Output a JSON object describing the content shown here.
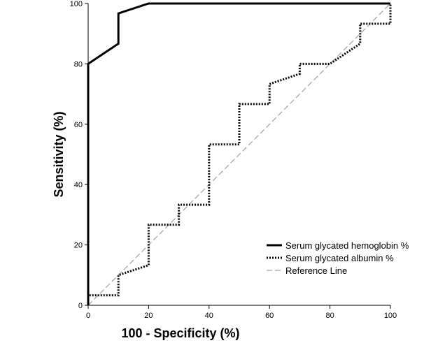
{
  "chart_data": {
    "type": "line",
    "xlabel": "100 - Specificity (%)",
    "ylabel": "Sensitivity (%)",
    "xlim": [
      0,
      100
    ],
    "ylim": [
      0,
      100
    ],
    "x_ticks": [
      "0",
      "20",
      "40",
      "60",
      "80",
      "100"
    ],
    "y_ticks": [
      "0",
      "20",
      "40",
      "60",
      "80",
      "100"
    ],
    "legend_position": "bottom-right",
    "series": [
      {
        "name": "Serum glycated hemoglobin %",
        "style": "solid",
        "color": "#000000",
        "x": [
          0,
          0,
          10,
          10,
          20,
          100
        ],
        "y": [
          0,
          80,
          86.7,
          96.7,
          100,
          100
        ]
      },
      {
        "name": "Serum glycated albumin %",
        "style": "dotted",
        "color": "#000000",
        "x": [
          0,
          0,
          10,
          10,
          20,
          20,
          30,
          30,
          40,
          40,
          50,
          50,
          60,
          60,
          70,
          70,
          80,
          90,
          90,
          100,
          100
        ],
        "y": [
          0,
          3.3,
          3.3,
          10,
          13.3,
          26.7,
          26.7,
          33.3,
          33.3,
          53.3,
          53.3,
          66.7,
          66.7,
          73.3,
          76.7,
          80,
          80,
          86.7,
          93.3,
          93.3,
          100
        ]
      },
      {
        "name": "Reference Line",
        "style": "dashed",
        "color": "#a0a0a0",
        "x": [
          0,
          100
        ],
        "y": [
          0,
          100
        ]
      }
    ]
  }
}
